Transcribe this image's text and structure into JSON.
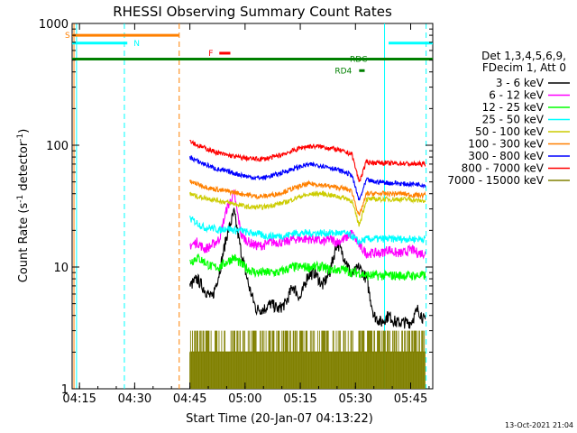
{
  "chart_data": {
    "type": "line",
    "title": "RHESSI Observing Summary Count Rates",
    "xlabel": "Start Time (20-Jan-07 04:13:22)",
    "ylabel_main": "Count Rate (s",
    "ylabel_sup": "-1",
    "ylabel_tail": " detector",
    "ylabel_end": ")",
    "footer": "13-Oct-2021 21:04",
    "x_range_min": [
      0,
      98
    ],
    "y_range_log": [
      1,
      1000
    ],
    "y_scale": "log",
    "x_ticks": [
      {
        "t": 2,
        "label": "04:15"
      },
      {
        "t": 17,
        "label": "04:30"
      },
      {
        "t": 32,
        "label": "04:45"
      },
      {
        "t": 47,
        "label": "05:00"
      },
      {
        "t": 62,
        "label": "05:15"
      },
      {
        "t": 77,
        "label": "05:30"
      },
      {
        "t": 92,
        "label": "05:45"
      }
    ],
    "y_ticks": [
      {
        "v": 1,
        "label": "1"
      },
      {
        "v": 10,
        "label": "10"
      },
      {
        "v": 100,
        "label": "100"
      },
      {
        "v": 1000,
        "label": "1000"
      }
    ],
    "legend_header": [
      "Det 1,3,4,5,6,9,",
      "FDecim 1, Att 0"
    ],
    "legend_placement": "right",
    "series": [
      {
        "name": "3 - 6 keV",
        "color": "#000000",
        "kind": "lo",
        "t": [
          32,
          34,
          36,
          38,
          40,
          42,
          44,
          46,
          48,
          50,
          52,
          54,
          56,
          58,
          60,
          62,
          64,
          66,
          68,
          70,
          72,
          74,
          76,
          78,
          80,
          82,
          84,
          86,
          88,
          90,
          92,
          94,
          96
        ],
        "v": [
          7,
          8,
          6.5,
          5.5,
          9,
          18,
          28,
          13,
          7,
          4.5,
          4.5,
          5,
          4.5,
          5,
          7,
          5.5,
          8.5,
          9,
          7,
          9,
          16,
          12,
          8.5,
          10,
          8,
          4,
          3.5,
          4,
          3.5,
          3.5,
          3.5,
          4.5,
          3.5
        ],
        "noise": 0.05
      },
      {
        "name": "6 - 12 keV",
        "color": "#ff00ff",
        "kind": "lo",
        "t": [
          32,
          34,
          36,
          38,
          40,
          42,
          44,
          46,
          48,
          50,
          52,
          54,
          56,
          58,
          60,
          62,
          64,
          66,
          68,
          70,
          72,
          74,
          76,
          78,
          80,
          82,
          84,
          86,
          88,
          90,
          92,
          94,
          96
        ],
        "v": [
          15,
          16,
          14,
          15,
          17,
          30,
          40,
          18,
          16,
          15,
          15,
          16,
          16,
          16,
          17,
          17,
          17,
          17,
          16,
          17,
          16,
          17,
          19,
          15,
          13,
          13,
          13,
          14,
          13,
          13,
          14,
          13,
          13
        ],
        "noise": 0.04
      },
      {
        "name": "12 - 25 keV",
        "color": "#00ff00",
        "kind": "lo",
        "t": [
          32,
          34,
          36,
          38,
          40,
          42,
          44,
          46,
          48,
          50,
          52,
          54,
          56,
          58,
          60,
          62,
          64,
          66,
          68,
          70,
          72,
          74,
          76,
          78,
          80,
          82,
          84,
          86,
          88,
          90,
          92,
          94,
          96
        ],
        "v": [
          11,
          12,
          11,
          10,
          10,
          11,
          12,
          10.5,
          9.5,
          9,
          9,
          9,
          9,
          9.5,
          10,
          10,
          10,
          10,
          10,
          9.5,
          9.5,
          9.5,
          9,
          9,
          8.5,
          8.5,
          8.5,
          8.5,
          8.5,
          8.5,
          8.5,
          8.5,
          8.5
        ],
        "noise": 0.04
      },
      {
        "name": "25 - 50 keV",
        "color": "#00ffff",
        "kind": "lo",
        "t": [
          32,
          34,
          36,
          38,
          40,
          42,
          44,
          46,
          48,
          50,
          52,
          54,
          56,
          58,
          60,
          62,
          64,
          66,
          68,
          70,
          72,
          74,
          76,
          78,
          80,
          82,
          84,
          86,
          88,
          90,
          92,
          94,
          96
        ],
        "v": [
          25,
          23,
          21,
          21,
          20,
          21,
          20,
          20,
          19,
          19,
          18,
          18,
          18,
          18,
          19,
          19,
          19,
          19,
          19,
          19,
          19,
          19,
          18,
          16,
          17,
          17,
          17,
          17,
          17,
          17,
          17,
          17,
          17
        ],
        "noise": 0.03
      },
      {
        "name": "50 - 100 keV",
        "color": "#cccc00",
        "kind": "hi",
        "t": [
          32,
          34,
          36,
          38,
          40,
          42,
          44,
          46,
          48,
          50,
          52,
          54,
          56,
          58,
          60,
          62,
          64,
          66,
          68,
          70,
          72,
          74,
          76,
          78,
          80,
          82,
          84,
          86,
          88,
          90,
          92,
          94,
          96
        ],
        "v": [
          40,
          38,
          37,
          36,
          35,
          34,
          33,
          32,
          31,
          31,
          31,
          32,
          33,
          34,
          36,
          38,
          39,
          40,
          40,
          39,
          38,
          37,
          35,
          22,
          36,
          36,
          36,
          36,
          36,
          36,
          36,
          35,
          35
        ],
        "noise": 0.02
      },
      {
        "name": "100 - 300 keV",
        "color": "#ff8000",
        "kind": "hi",
        "t": [
          32,
          34,
          36,
          38,
          40,
          42,
          44,
          46,
          48,
          50,
          52,
          54,
          56,
          58,
          60,
          62,
          64,
          66,
          68,
          70,
          72,
          74,
          76,
          78,
          80,
          82,
          84,
          86,
          88,
          90,
          92,
          94,
          96
        ],
        "v": [
          50,
          48,
          46,
          44,
          43,
          42,
          41,
          40,
          39,
          38,
          38,
          39,
          40,
          42,
          44,
          46,
          48,
          48,
          47,
          46,
          45,
          44,
          42,
          26,
          40,
          40,
          40,
          40,
          40,
          40,
          39,
          39,
          39
        ],
        "noise": 0.02
      },
      {
        "name": "300 - 800 keV",
        "color": "#0000ff",
        "kind": "hi",
        "t": [
          32,
          34,
          36,
          38,
          40,
          42,
          44,
          46,
          48,
          50,
          52,
          54,
          56,
          58,
          60,
          62,
          64,
          66,
          68,
          70,
          72,
          74,
          76,
          78,
          80,
          82,
          84,
          86,
          88,
          90,
          92,
          94,
          96
        ],
        "v": [
          80,
          74,
          70,
          66,
          63,
          61,
          59,
          57,
          55,
          54,
          54,
          56,
          58,
          61,
          64,
          67,
          69,
          69,
          68,
          66,
          63,
          60,
          57,
          35,
          52,
          50,
          50,
          49,
          49,
          48,
          48,
          48,
          47
        ],
        "noise": 0.02
      },
      {
        "name": "800 - 7000 keV",
        "color": "#ff0000",
        "kind": "hi",
        "t": [
          32,
          34,
          36,
          38,
          40,
          42,
          44,
          46,
          48,
          50,
          52,
          54,
          56,
          58,
          60,
          62,
          64,
          66,
          68,
          70,
          72,
          74,
          76,
          78,
          80,
          82,
          84,
          86,
          88,
          90,
          92,
          94,
          96
        ],
        "v": [
          110,
          100,
          95,
          90,
          86,
          83,
          81,
          79,
          78,
          77,
          77,
          79,
          82,
          86,
          90,
          95,
          98,
          98,
          97,
          95,
          92,
          88,
          85,
          50,
          73,
          72,
          72,
          71,
          71,
          71,
          70,
          70,
          70
        ],
        "noise": 0.02
      },
      {
        "name": "7000 - 15000 keV",
        "color": "#808000",
        "kind": "bg",
        "t": [
          32,
          96
        ],
        "v": [
          2,
          2
        ],
        "noise": 0
      }
    ],
    "flags": [
      {
        "label": "S",
        "color": "#ff8000",
        "t0": 0,
        "t1": 29,
        "v": 800
      },
      {
        "label": "N",
        "color": "#00ffff",
        "t0": 0,
        "t1": 15,
        "v": 690
      },
      {
        "label": "N",
        "color": "#00ffff",
        "t0": 86,
        "t1": 98,
        "v": 690
      },
      {
        "label": "F",
        "color": "#ff0000",
        "t0": 40,
        "t1": 43,
        "v": 570
      },
      {
        "label": "RDC",
        "color": "#008000",
        "t0": 0,
        "t1": 98,
        "v": 510
      },
      {
        "label": "RD4",
        "color": "#008000",
        "t0": 78,
        "t1": 79.5,
        "v": 410
      }
    ],
    "vlines": [
      {
        "t": 0.5,
        "color": "#ff8000",
        "dashed": false
      },
      {
        "t": 1.2,
        "color": "#00ffff",
        "dashed": false
      },
      {
        "t": 14.2,
        "color": "#00ffff",
        "dashed": true
      },
      {
        "t": 29.1,
        "color": "#ff8000",
        "dashed": true
      },
      {
        "t": 84.9,
        "color": "#00ffff",
        "dashed": false
      },
      {
        "t": 96.2,
        "color": "#00ffff",
        "dashed": true
      }
    ]
  }
}
